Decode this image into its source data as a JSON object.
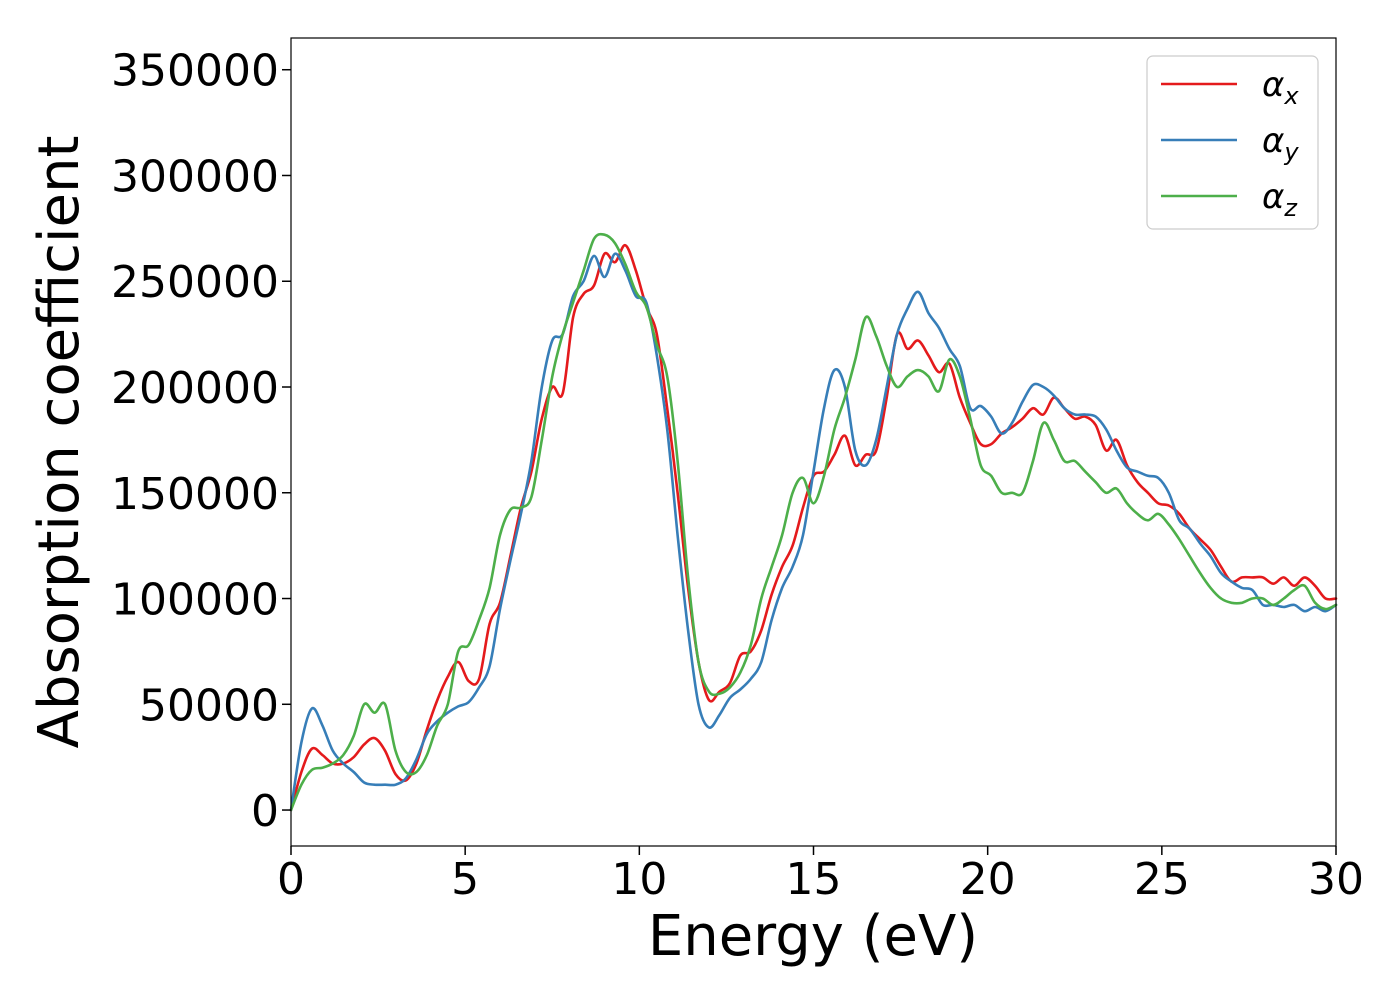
{
  "chart_data": {
    "type": "line",
    "xlabel": "Energy (eV)",
    "ylabel": "Absorption coefficient",
    "xlim": [
      0,
      30
    ],
    "ylim": [
      -17000,
      365000
    ],
    "xticks": [
      0,
      5,
      10,
      15,
      20,
      25,
      30
    ],
    "yticks": [
      0,
      50000,
      100000,
      150000,
      200000,
      250000,
      300000,
      350000
    ],
    "legend_position": "top-right",
    "grid": false,
    "series": [
      {
        "name": "α",
        "subscript": "x",
        "color": "#e41a1c",
        "x": [
          0,
          0.3,
          0.6,
          0.9,
          1.2,
          1.5,
          1.8,
          2.1,
          2.4,
          2.7,
          3.0,
          3.3,
          3.6,
          3.9,
          4.2,
          4.5,
          4.8,
          5.1,
          5.4,
          5.7,
          6.0,
          6.3,
          6.6,
          6.9,
          7.2,
          7.5,
          7.8,
          8.1,
          8.4,
          8.7,
          9.0,
          9.3,
          9.6,
          9.9,
          10.2,
          10.5,
          10.8,
          11.1,
          11.4,
          11.7,
          12.0,
          12.3,
          12.6,
          12.9,
          13.2,
          13.5,
          13.8,
          14.1,
          14.4,
          14.7,
          15.0,
          15.3,
          15.6,
          15.9,
          16.2,
          16.5,
          16.8,
          17.1,
          17.4,
          17.7,
          18.0,
          18.3,
          18.6,
          18.9,
          19.2,
          19.5,
          19.8,
          20.1,
          20.4,
          20.7,
          21.0,
          21.3,
          21.6,
          21.9,
          22.2,
          22.5,
          22.8,
          23.1,
          23.4,
          23.7,
          24.0,
          24.3,
          24.6,
          24.9,
          25.2,
          25.5,
          25.8,
          26.1,
          26.4,
          26.7,
          27.0,
          27.3,
          27.6,
          27.9,
          28.2,
          28.5,
          28.8,
          29.1,
          29.4,
          29.7,
          30.0
        ],
        "y": [
          0,
          18000,
          29000,
          26000,
          22000,
          22000,
          25000,
          31000,
          34000,
          28000,
          17000,
          14000,
          22000,
          38000,
          52000,
          63000,
          70000,
          61000,
          62000,
          88000,
          98000,
          120000,
          143000,
          160000,
          185000,
          200000,
          197000,
          233000,
          244000,
          248000,
          263000,
          259000,
          267000,
          255000,
          238000,
          225000,
          190000,
          150000,
          105000,
          70000,
          52000,
          56000,
          60000,
          73000,
          75000,
          85000,
          102000,
          115000,
          125000,
          143000,
          158000,
          160000,
          168000,
          177000,
          163000,
          168000,
          170000,
          195000,
          225000,
          218000,
          222000,
          215000,
          207000,
          211000,
          195000,
          183000,
          173000,
          173000,
          178000,
          181000,
          185000,
          190000,
          187000,
          195000,
          190000,
          185000,
          186000,
          182000,
          170000,
          175000,
          163000,
          155000,
          150000,
          145000,
          144000,
          140000,
          133000,
          128000,
          123000,
          115000,
          108000,
          110000,
          110000,
          110000,
          107000,
          110000,
          106000,
          110000,
          106000,
          100000,
          100000
        ]
      },
      {
        "name": "α",
        "subscript": "y",
        "color": "#377eb8",
        "x": [
          0,
          0.3,
          0.6,
          0.9,
          1.2,
          1.5,
          1.8,
          2.1,
          2.4,
          2.7,
          3.0,
          3.3,
          3.6,
          3.9,
          4.2,
          4.5,
          4.8,
          5.1,
          5.4,
          5.7,
          6.0,
          6.3,
          6.6,
          6.9,
          7.2,
          7.5,
          7.8,
          8.1,
          8.4,
          8.7,
          9.0,
          9.3,
          9.6,
          9.9,
          10.2,
          10.5,
          10.8,
          11.1,
          11.4,
          11.7,
          12.0,
          12.3,
          12.6,
          12.9,
          13.2,
          13.5,
          13.8,
          14.1,
          14.4,
          14.7,
          15.0,
          15.3,
          15.6,
          15.9,
          16.2,
          16.5,
          16.8,
          17.1,
          17.4,
          17.7,
          18.0,
          18.3,
          18.6,
          18.9,
          19.2,
          19.5,
          19.8,
          20.1,
          20.4,
          20.7,
          21.0,
          21.3,
          21.6,
          21.9,
          22.2,
          22.5,
          22.8,
          23.1,
          23.4,
          23.7,
          24.0,
          24.3,
          24.6,
          24.9,
          25.2,
          25.5,
          25.8,
          26.1,
          26.4,
          26.7,
          27.0,
          27.3,
          27.6,
          27.9,
          28.2,
          28.5,
          28.8,
          29.1,
          29.4,
          29.7,
          30.0
        ],
        "y": [
          0,
          32000,
          48000,
          40000,
          28000,
          22000,
          18000,
          13000,
          12000,
          12000,
          12000,
          15000,
          24000,
          36000,
          42000,
          46000,
          49000,
          51000,
          58000,
          68000,
          95000,
          118000,
          140000,
          165000,
          200000,
          222000,
          225000,
          243000,
          250000,
          262000,
          252000,
          263000,
          255000,
          243000,
          240000,
          215000,
          180000,
          130000,
          85000,
          50000,
          39000,
          45000,
          53000,
          57000,
          62000,
          70000,
          90000,
          105000,
          115000,
          130000,
          160000,
          190000,
          208000,
          200000,
          170000,
          163000,
          175000,
          200000,
          225000,
          237000,
          245000,
          235000,
          228000,
          218000,
          210000,
          190000,
          191000,
          186000,
          178000,
          183000,
          193000,
          201000,
          200000,
          196000,
          190000,
          187000,
          187000,
          186000,
          180000,
          170000,
          162000,
          160000,
          158000,
          157000,
          150000,
          137000,
          133000,
          126000,
          120000,
          112000,
          108000,
          105000,
          104000,
          97000,
          97000,
          96000,
          97000,
          94000,
          96000,
          94000,
          97000
        ]
      },
      {
        "name": "α",
        "subscript": "z",
        "color": "#4daf4a",
        "x": [
          0,
          0.3,
          0.6,
          0.9,
          1.2,
          1.5,
          1.8,
          2.1,
          2.4,
          2.7,
          3.0,
          3.3,
          3.6,
          3.9,
          4.2,
          4.5,
          4.8,
          5.1,
          5.4,
          5.7,
          6.0,
          6.3,
          6.6,
          6.9,
          7.2,
          7.5,
          7.8,
          8.1,
          8.4,
          8.7,
          9.0,
          9.3,
          9.6,
          9.9,
          10.2,
          10.5,
          10.8,
          11.1,
          11.4,
          11.7,
          12.0,
          12.3,
          12.6,
          12.9,
          13.2,
          13.5,
          13.8,
          14.1,
          14.4,
          14.7,
          15.0,
          15.3,
          15.6,
          15.9,
          16.2,
          16.5,
          16.8,
          17.1,
          17.4,
          17.7,
          18.0,
          18.3,
          18.6,
          18.9,
          19.2,
          19.5,
          19.8,
          20.1,
          20.4,
          20.7,
          21.0,
          21.3,
          21.6,
          21.9,
          22.2,
          22.5,
          22.8,
          23.1,
          23.4,
          23.7,
          24.0,
          24.3,
          24.6,
          24.9,
          25.2,
          25.5,
          25.8,
          26.1,
          26.4,
          26.7,
          27.0,
          27.3,
          27.6,
          27.9,
          28.2,
          28.5,
          28.8,
          29.1,
          29.4,
          29.7,
          30.0
        ],
        "y": [
          0,
          12000,
          19000,
          20000,
          22000,
          26000,
          35000,
          50000,
          46000,
          50000,
          28000,
          18000,
          18000,
          26000,
          40000,
          50000,
          75000,
          78000,
          90000,
          105000,
          130000,
          142000,
          143000,
          148000,
          175000,
          205000,
          225000,
          240000,
          255000,
          270000,
          272000,
          268000,
          258000,
          245000,
          238000,
          220000,
          205000,
          165000,
          110000,
          70000,
          56000,
          55000,
          58000,
          65000,
          78000,
          100000,
          115000,
          130000,
          150000,
          157000,
          145000,
          158000,
          180000,
          195000,
          213000,
          233000,
          224000,
          210000,
          200000,
          205000,
          208000,
          205000,
          198000,
          213000,
          205000,
          185000,
          163000,
          158000,
          150000,
          150000,
          150000,
          165000,
          183000,
          175000,
          165000,
          165000,
          160000,
          155000,
          150000,
          152000,
          145000,
          140000,
          137000,
          140000,
          135000,
          128000,
          120000,
          112000,
          105000,
          100000,
          98000,
          98000,
          100000,
          100000,
          97000,
          100000,
          104000,
          106000,
          98000,
          95000,
          97000
        ]
      }
    ]
  }
}
